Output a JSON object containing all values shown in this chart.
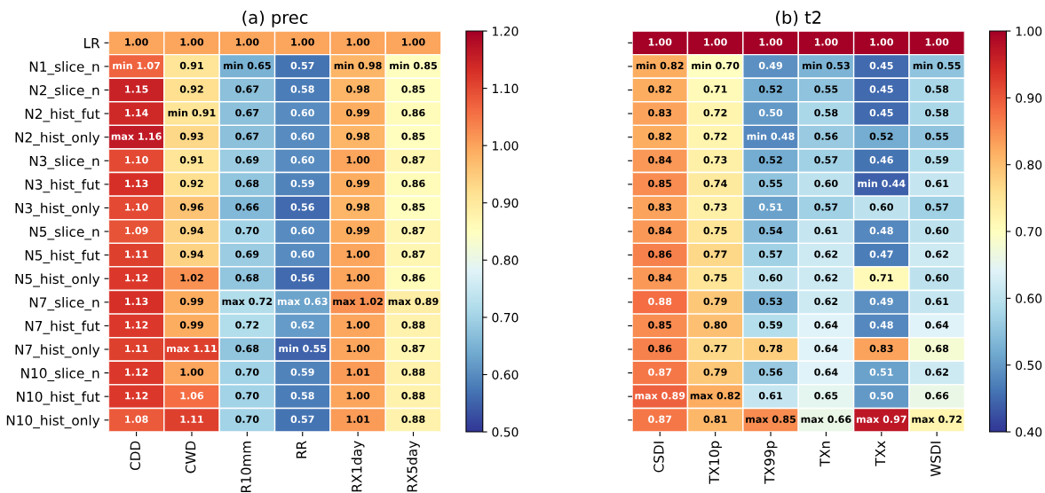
{
  "chart_data": [
    {
      "type": "heatmap",
      "title": "(a) prec",
      "categories": [
        "CDD",
        "CWD",
        "R10mm",
        "RR",
        "RX1day",
        "RX5day"
      ],
      "y_categories": [
        "LR",
        "N1_slice_n",
        "N2_slice_n",
        "N2_hist_fut",
        "N2_hist_only",
        "N3_slice_n",
        "N3_hist_fut",
        "N3_hist_only",
        "N5_slice_n",
        "N5_hist_fut",
        "N5_hist_only",
        "N7_slice_n",
        "N7_hist_fut",
        "N7_hist_only",
        "N10_slice_n",
        "N10_hist_fut",
        "N10_hist_only"
      ],
      "cells": [
        [
          1.0,
          1.0,
          1.0,
          1.0,
          1.0,
          1.0
        ],
        [
          1.07,
          0.91,
          0.65,
          0.57,
          0.98,
          0.85
        ],
        [
          1.15,
          0.92,
          0.67,
          0.58,
          0.98,
          0.85
        ],
        [
          1.14,
          0.91,
          0.67,
          0.6,
          0.99,
          0.86
        ],
        [
          1.16,
          0.93,
          0.67,
          0.6,
          0.98,
          0.85
        ],
        [
          1.1,
          0.91,
          0.69,
          0.6,
          1.0,
          0.87
        ],
        [
          1.13,
          0.92,
          0.68,
          0.59,
          0.99,
          0.86
        ],
        [
          1.1,
          0.96,
          0.66,
          0.56,
          0.98,
          0.85
        ],
        [
          1.09,
          0.94,
          0.7,
          0.6,
          0.99,
          0.87
        ],
        [
          1.11,
          0.94,
          0.69,
          0.6,
          1.0,
          0.87
        ],
        [
          1.12,
          1.02,
          0.68,
          0.56,
          1.0,
          0.86
        ],
        [
          1.13,
          0.99,
          0.72,
          0.63,
          1.02,
          0.89
        ],
        [
          1.12,
          0.99,
          0.72,
          0.62,
          1.0,
          0.88
        ],
        [
          1.11,
          1.11,
          0.68,
          0.55,
          1.0,
          0.87
        ],
        [
          1.12,
          1.0,
          0.7,
          0.59,
          1.01,
          0.88
        ],
        [
          1.12,
          1.06,
          0.7,
          0.58,
          1.0,
          0.88
        ],
        [
          1.08,
          1.11,
          0.7,
          0.57,
          1.01,
          0.88
        ]
      ],
      "cell_labels": [
        [
          "1.00",
          "1.00",
          "1.00",
          "1.00",
          "1.00",
          "1.00"
        ],
        [
          "min 1.07",
          "0.91",
          "min 0.65",
          "0.57",
          "min 0.98",
          "min 0.85"
        ],
        [
          "1.15",
          "0.92",
          "0.67",
          "0.58",
          "0.98",
          "0.85"
        ],
        [
          "1.14",
          "min 0.91",
          "0.67",
          "0.60",
          "0.99",
          "0.86"
        ],
        [
          "max 1.16",
          "0.93",
          "0.67",
          "0.60",
          "0.98",
          "0.85"
        ],
        [
          "1.10",
          "0.91",
          "0.69",
          "0.60",
          "1.00",
          "0.87"
        ],
        [
          "1.13",
          "0.92",
          "0.68",
          "0.59",
          "0.99",
          "0.86"
        ],
        [
          "1.10",
          "0.96",
          "0.66",
          "0.56",
          "0.98",
          "0.85"
        ],
        [
          "1.09",
          "0.94",
          "0.70",
          "0.60",
          "0.99",
          "0.87"
        ],
        [
          "1.11",
          "0.94",
          "0.69",
          "0.60",
          "1.00",
          "0.87"
        ],
        [
          "1.12",
          "1.02",
          "0.68",
          "0.56",
          "1.00",
          "0.86"
        ],
        [
          "1.13",
          "0.99",
          "max 0.72",
          "max 0.63",
          "max 1.02",
          "max 0.89"
        ],
        [
          "1.12",
          "0.99",
          "0.72",
          "0.62",
          "1.00",
          "0.88"
        ],
        [
          "1.11",
          "max 1.11",
          "0.68",
          "min 0.55",
          "1.00",
          "0.87"
        ],
        [
          "1.12",
          "1.00",
          "0.70",
          "0.59",
          "1.01",
          "0.88"
        ],
        [
          "1.12",
          "1.06",
          "0.70",
          "0.58",
          "1.00",
          "0.88"
        ],
        [
          "1.08",
          "1.11",
          "0.70",
          "0.57",
          "1.01",
          "0.88"
        ]
      ],
      "clim": [
        0.5,
        1.2
      ],
      "cticks": [
        {
          "value": 0.5,
          "label": "0.50"
        },
        {
          "value": 0.6,
          "label": "0.60"
        },
        {
          "value": 0.7,
          "label": "0.70"
        },
        {
          "value": 0.8,
          "label": "0.80"
        },
        {
          "value": 0.9,
          "label": "0.90"
        },
        {
          "value": 1.0,
          "label": "1.00"
        },
        {
          "value": 1.1,
          "label": "1.10"
        },
        {
          "value": 1.2,
          "label": "1.20"
        }
      ]
    },
    {
      "type": "heatmap",
      "title": "(b) t2",
      "categories": [
        "CSDI",
        "TX10p",
        "TX99p",
        "TXn",
        "TXx",
        "WSDI"
      ],
      "y_categories": [
        null,
        null,
        null,
        null,
        null,
        null,
        null,
        null,
        null,
        null,
        null,
        null,
        null,
        null,
        null,
        null,
        null
      ],
      "cells": [
        [
          1.0,
          1.0,
          1.0,
          1.0,
          1.0,
          1.0
        ],
        [
          0.82,
          0.7,
          0.49,
          0.53,
          0.45,
          0.55
        ],
        [
          0.82,
          0.71,
          0.52,
          0.55,
          0.45,
          0.58
        ],
        [
          0.83,
          0.72,
          0.5,
          0.58,
          0.45,
          0.58
        ],
        [
          0.82,
          0.72,
          0.48,
          0.56,
          0.52,
          0.55
        ],
        [
          0.84,
          0.73,
          0.52,
          0.57,
          0.46,
          0.59
        ],
        [
          0.85,
          0.74,
          0.55,
          0.6,
          0.44,
          0.61
        ],
        [
          0.83,
          0.73,
          0.51,
          0.57,
          0.6,
          0.57
        ],
        [
          0.84,
          0.75,
          0.54,
          0.61,
          0.48,
          0.6
        ],
        [
          0.86,
          0.77,
          0.57,
          0.62,
          0.47,
          0.62
        ],
        [
          0.84,
          0.75,
          0.6,
          0.62,
          0.71,
          0.6
        ],
        [
          0.88,
          0.79,
          0.53,
          0.62,
          0.49,
          0.61
        ],
        [
          0.85,
          0.8,
          0.59,
          0.64,
          0.48,
          0.64
        ],
        [
          0.86,
          0.77,
          0.78,
          0.64,
          0.83,
          0.68
        ],
        [
          0.87,
          0.79,
          0.56,
          0.64,
          0.51,
          0.62
        ],
        [
          0.89,
          0.82,
          0.61,
          0.65,
          0.5,
          0.66
        ],
        [
          0.87,
          0.81,
          0.85,
          0.66,
          0.97,
          0.72
        ]
      ],
      "cell_labels": [
        [
          "1.00",
          "1.00",
          "1.00",
          "1.00",
          "1.00",
          "1.00"
        ],
        [
          "min 0.82",
          "min 0.70",
          "0.49",
          "min 0.53",
          "0.45",
          "min 0.55"
        ],
        [
          "0.82",
          "0.71",
          "0.52",
          "0.55",
          "0.45",
          "0.58"
        ],
        [
          "0.83",
          "0.72",
          "0.50",
          "0.58",
          "0.45",
          "0.58"
        ],
        [
          "0.82",
          "0.72",
          "min 0.48",
          "0.56",
          "0.52",
          "0.55"
        ],
        [
          "0.84",
          "0.73",
          "0.52",
          "0.57",
          "0.46",
          "0.59"
        ],
        [
          "0.85",
          "0.74",
          "0.55",
          "0.60",
          "min 0.44",
          "0.61"
        ],
        [
          "0.83",
          "0.73",
          "0.51",
          "0.57",
          "0.60",
          "0.57"
        ],
        [
          "0.84",
          "0.75",
          "0.54",
          "0.61",
          "0.48",
          "0.60"
        ],
        [
          "0.86",
          "0.77",
          "0.57",
          "0.62",
          "0.47",
          "0.62"
        ],
        [
          "0.84",
          "0.75",
          "0.60",
          "0.62",
          "0.71",
          "0.60"
        ],
        [
          "0.88",
          "0.79",
          "0.53",
          "0.62",
          "0.49",
          "0.61"
        ],
        [
          "0.85",
          "0.80",
          "0.59",
          "0.64",
          "0.48",
          "0.64"
        ],
        [
          "0.86",
          "0.77",
          "0.78",
          "0.64",
          "0.83",
          "0.68"
        ],
        [
          "0.87",
          "0.79",
          "0.56",
          "0.64",
          "0.51",
          "0.62"
        ],
        [
          "max 0.89",
          "max 0.82",
          "0.61",
          "0.65",
          "0.50",
          "0.66"
        ],
        [
          "0.87",
          "0.81",
          "max 0.85",
          "max 0.66",
          "max 0.97",
          "max 0.72"
        ]
      ],
      "clim": [
        0.4,
        1.0
      ],
      "cticks": [
        {
          "value": 0.4,
          "label": "0.40"
        },
        {
          "value": 0.5,
          "label": "0.50"
        },
        {
          "value": 0.6,
          "label": "0.60"
        },
        {
          "value": 0.7,
          "label": "0.70"
        },
        {
          "value": 0.8,
          "label": "0.80"
        },
        {
          "value": 0.9,
          "label": "0.90"
        },
        {
          "value": 1.0,
          "label": "1.00"
        }
      ]
    }
  ]
}
